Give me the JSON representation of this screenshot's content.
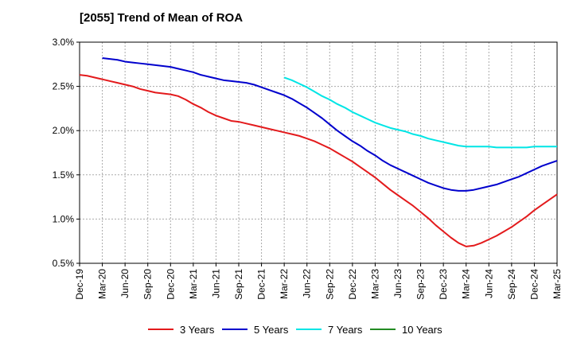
{
  "chart_data": {
    "type": "line",
    "title": "[2055]  Trend of Mean of ROA",
    "xlabel": "",
    "ylabel": "",
    "ylim": [
      0.5,
      3.0
    ],
    "y_ticks": [
      0.5,
      1.0,
      1.5,
      2.0,
      2.5,
      3.0
    ],
    "y_tick_labels": [
      "0.5%",
      "1.0%",
      "1.5%",
      "2.0%",
      "2.5%",
      "3.0%"
    ],
    "x_tick_labels": [
      "Dec-19",
      "Mar-20",
      "Jun-20",
      "Sep-20",
      "Dec-20",
      "Mar-21",
      "Jun-21",
      "Sep-21",
      "Dec-21",
      "Mar-22",
      "Jun-22",
      "Sep-22",
      "Dec-22",
      "Mar-23",
      "Jun-23",
      "Sep-23",
      "Dec-23",
      "Mar-24",
      "Jun-24",
      "Sep-24",
      "Dec-24",
      "Mar-25"
    ],
    "grid": true,
    "legend_position": "bottom",
    "series": [
      {
        "name": "3 Years",
        "color": "#e31a1c",
        "values": [
          2.63,
          2.62,
          2.6,
          2.58,
          2.56,
          2.54,
          2.52,
          2.5,
          2.47,
          2.45,
          2.43,
          2.42,
          2.41,
          2.39,
          2.35,
          2.3,
          2.26,
          2.21,
          2.17,
          2.14,
          2.11,
          2.1,
          2.08,
          2.06,
          2.04,
          2.02,
          2.0,
          1.98,
          1.96,
          1.94,
          1.91,
          1.88,
          1.84,
          1.8,
          1.75,
          1.7,
          1.65,
          1.59,
          1.53,
          1.47,
          1.4,
          1.33,
          1.27,
          1.21,
          1.15,
          1.08,
          1.01,
          0.93,
          0.86,
          0.79,
          0.73,
          0.69,
          0.7,
          0.73,
          0.77,
          0.81,
          0.86,
          0.91,
          0.97,
          1.03,
          1.1,
          1.16,
          1.22,
          1.28
        ]
      },
      {
        "name": "5 Years",
        "color": "#0000cd",
        "values": [
          null,
          null,
          null,
          2.82,
          2.81,
          2.8,
          2.78,
          2.77,
          2.76,
          2.75,
          2.74,
          2.73,
          2.72,
          2.7,
          2.68,
          2.66,
          2.63,
          2.61,
          2.59,
          2.57,
          2.56,
          2.55,
          2.54,
          2.52,
          2.49,
          2.46,
          2.43,
          2.4,
          2.36,
          2.31,
          2.26,
          2.2,
          2.14,
          2.07,
          2.0,
          1.94,
          1.88,
          1.83,
          1.77,
          1.72,
          1.66,
          1.61,
          1.57,
          1.53,
          1.49,
          1.45,
          1.41,
          1.38,
          1.35,
          1.33,
          1.32,
          1.32,
          1.33,
          1.35,
          1.37,
          1.39,
          1.42,
          1.45,
          1.48,
          1.52,
          1.56,
          1.6,
          1.63,
          1.66
        ]
      },
      {
        "name": "7 Years",
        "color": "#00e5e5",
        "values": [
          null,
          null,
          null,
          null,
          null,
          null,
          null,
          null,
          null,
          null,
          null,
          null,
          null,
          null,
          null,
          null,
          null,
          null,
          null,
          null,
          null,
          null,
          null,
          null,
          null,
          null,
          null,
          2.6,
          2.57,
          2.53,
          2.49,
          2.44,
          2.39,
          2.35,
          2.3,
          2.26,
          2.21,
          2.17,
          2.13,
          2.09,
          2.06,
          2.03,
          2.01,
          1.99,
          1.96,
          1.94,
          1.91,
          1.89,
          1.87,
          1.85,
          1.83,
          1.82,
          1.82,
          1.82,
          1.82,
          1.81,
          1.81,
          1.81,
          1.81,
          1.81,
          1.82,
          1.82,
          1.82,
          1.82
        ]
      },
      {
        "name": "10 Years",
        "color": "#228b22",
        "values": []
      }
    ]
  }
}
